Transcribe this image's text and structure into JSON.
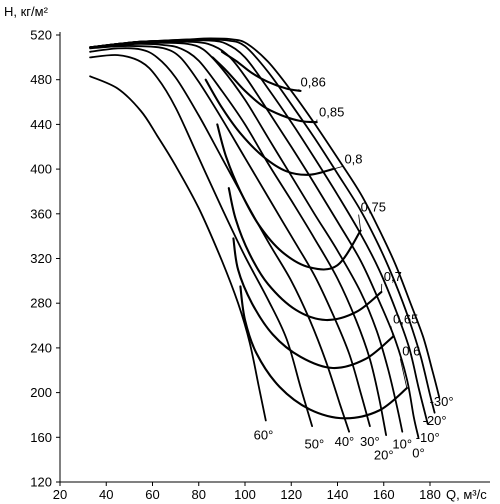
{
  "chart_data": {
    "type": "line",
    "xlabel": "Q, м³/с",
    "ylabel": "H, кг/м²",
    "xlim": [
      20,
      185
    ],
    "ylim": [
      120,
      520
    ],
    "x_ticks": [
      20,
      40,
      60,
      80,
      100,
      120,
      140,
      160,
      180
    ],
    "y_ticks": [
      120,
      160,
      200,
      240,
      280,
      320,
      360,
      400,
      440,
      480,
      520
    ],
    "grid": false,
    "blade_angle_curves": [
      {
        "name": "60°",
        "label_at": [
          108,
          158
        ],
        "points": [
          [
            33,
            483
          ],
          [
            45,
            472
          ],
          [
            55,
            452
          ],
          [
            62,
            430
          ],
          [
            70,
            403
          ],
          [
            80,
            365
          ],
          [
            90,
            318
          ],
          [
            97,
            280
          ],
          [
            102,
            245
          ],
          [
            106,
            205
          ],
          [
            109,
            175
          ]
        ]
      },
      {
        "name": "50°",
        "label_at": [
          130,
          150
        ],
        "points": [
          [
            33,
            500
          ],
          [
            45,
            502
          ],
          [
            55,
            496
          ],
          [
            62,
            482
          ],
          [
            70,
            455
          ],
          [
            80,
            410
          ],
          [
            90,
            365
          ],
          [
            100,
            322
          ],
          [
            110,
            283
          ],
          [
            118,
            248
          ],
          [
            124,
            205
          ],
          [
            129,
            170
          ]
        ]
      },
      {
        "name": "40°",
        "label_at": [
          143,
          152
        ],
        "points": [
          [
            33,
            505
          ],
          [
            45,
            508
          ],
          [
            55,
            507
          ],
          [
            62,
            500
          ],
          [
            70,
            482
          ],
          [
            80,
            448
          ],
          [
            90,
            410
          ],
          [
            100,
            372
          ],
          [
            110,
            335
          ],
          [
            120,
            300
          ],
          [
            128,
            265
          ],
          [
            135,
            228
          ],
          [
            141,
            190
          ],
          [
            145,
            165
          ]
        ]
      },
      {
        "name": "30°",
        "label_at": [
          154,
          152
        ],
        "points": [
          [
            33,
            508
          ],
          [
            45,
            510
          ],
          [
            55,
            510
          ],
          [
            65,
            508
          ],
          [
            72,
            500
          ],
          [
            80,
            478
          ],
          [
            90,
            445
          ],
          [
            100,
            410
          ],
          [
            110,
            375
          ],
          [
            120,
            340
          ],
          [
            130,
            305
          ],
          [
            138,
            270
          ],
          [
            145,
            235
          ],
          [
            150,
            200
          ],
          [
            154,
            170
          ]
        ]
      },
      {
        "name": "20°",
        "label_at": [
          160,
          140
        ],
        "points": [
          [
            33,
            509
          ],
          [
            45,
            511
          ],
          [
            55,
            512
          ],
          [
            65,
            511
          ],
          [
            72,
            508
          ],
          [
            80,
            497
          ],
          [
            90,
            470
          ],
          [
            100,
            440
          ],
          [
            110,
            405
          ],
          [
            120,
            372
          ],
          [
            130,
            338
          ],
          [
            140,
            302
          ],
          [
            148,
            265
          ],
          [
            154,
            230
          ],
          [
            158,
            195
          ],
          [
            161,
            162
          ]
        ]
      },
      {
        "name": "10°",
        "label_at": [
          168,
          150
        ],
        "points": [
          [
            33,
            509
          ],
          [
            45,
            512
          ],
          [
            55,
            513
          ],
          [
            65,
            513
          ],
          [
            75,
            512
          ],
          [
            82,
            507
          ],
          [
            90,
            490
          ],
          [
            100,
            462
          ],
          [
            110,
            428
          ],
          [
            120,
            394
          ],
          [
            130,
            360
          ],
          [
            140,
            327
          ],
          [
            150,
            290
          ],
          [
            157,
            255
          ],
          [
            162,
            220
          ],
          [
            166,
            185
          ],
          [
            168,
            165
          ]
        ]
      },
      {
        "name": "0°",
        "label_at": [
          175,
          142
        ],
        "points": [
          [
            33,
            509
          ],
          [
            45,
            512
          ],
          [
            55,
            514
          ],
          [
            65,
            514
          ],
          [
            75,
            514
          ],
          [
            84,
            512
          ],
          [
            92,
            503
          ],
          [
            100,
            483
          ],
          [
            110,
            452
          ],
          [
            120,
            420
          ],
          [
            130,
            387
          ],
          [
            140,
            353
          ],
          [
            150,
            318
          ],
          [
            158,
            282
          ],
          [
            165,
            247
          ],
          [
            170,
            212
          ],
          [
            173,
            178
          ],
          [
            175,
            160
          ]
        ]
      },
      {
        "name": "-10°",
        "label_at": [
          179,
          156
        ],
        "points": [
          [
            33,
            509
          ],
          [
            45,
            512
          ],
          [
            55,
            514
          ],
          [
            65,
            515
          ],
          [
            75,
            515
          ],
          [
            85,
            515
          ],
          [
            92,
            512
          ],
          [
            100,
            500
          ],
          [
            110,
            472
          ],
          [
            120,
            442
          ],
          [
            130,
            410
          ],
          [
            140,
            377
          ],
          [
            150,
            342
          ],
          [
            158,
            310
          ],
          [
            165,
            275
          ],
          [
            171,
            240
          ],
          [
            175,
            205
          ],
          [
            179,
            172
          ]
        ]
      },
      {
        "name": "-20°",
        "label_at": [
          182,
          171
        ],
        "points": [
          [
            33,
            509
          ],
          [
            45,
            512
          ],
          [
            55,
            514
          ],
          [
            65,
            515
          ],
          [
            75,
            516
          ],
          [
            85,
            516
          ],
          [
            93,
            515
          ],
          [
            100,
            510
          ],
          [
            110,
            487
          ],
          [
            120,
            458
          ],
          [
            130,
            428
          ],
          [
            140,
            396
          ],
          [
            150,
            363
          ],
          [
            158,
            331
          ],
          [
            165,
            298
          ],
          [
            171,
            265
          ],
          [
            176,
            232
          ],
          [
            180,
            198
          ],
          [
            182,
            182
          ]
        ]
      },
      {
        "name": "-30°",
        "label_at": [
          185,
          188
        ],
        "points": [
          [
            33,
            509
          ],
          [
            45,
            512
          ],
          [
            55,
            514
          ],
          [
            65,
            515
          ],
          [
            75,
            516
          ],
          [
            85,
            517
          ],
          [
            95,
            516
          ],
          [
            101,
            512
          ],
          [
            110,
            496
          ],
          [
            120,
            470
          ],
          [
            130,
            441
          ],
          [
            140,
            410
          ],
          [
            150,
            378
          ],
          [
            158,
            346
          ],
          [
            165,
            315
          ],
          [
            171,
            283
          ],
          [
            177,
            250
          ],
          [
            181,
            220
          ],
          [
            184,
            196
          ]
        ]
      }
    ],
    "efficiency_curves": [
      {
        "name": "0,6",
        "label_at": [
          168,
          233
        ],
        "points": [
          [
            98,
            295
          ],
          [
            100,
            265
          ],
          [
            105,
            235
          ],
          [
            115,
            205
          ],
          [
            128,
            185
          ],
          [
            143,
            177
          ],
          [
            158,
            184
          ],
          [
            170,
            204
          ]
        ]
      },
      {
        "name": "0,65",
        "label_at": [
          164,
          262
        ],
        "points": [
          [
            95,
            338
          ],
          [
            97,
            310
          ],
          [
            103,
            280
          ],
          [
            112,
            252
          ],
          [
            124,
            232
          ],
          [
            138,
            222
          ],
          [
            152,
            230
          ],
          [
            164,
            250
          ]
        ]
      },
      {
        "name": "0,7",
        "label_at": [
          160,
          300
        ],
        "points": [
          [
            93,
            383
          ],
          [
            96,
            355
          ],
          [
            102,
            324
          ],
          [
            110,
            297
          ],
          [
            122,
            274
          ],
          [
            135,
            265
          ],
          [
            148,
            272
          ],
          [
            159,
            290
          ]
        ]
      },
      {
        "name": "0,75",
        "label_at": [
          150,
          362
        ],
        "points": [
          [
            88,
            440
          ],
          [
            92,
            410
          ],
          [
            98,
            380
          ],
          [
            106,
            350
          ],
          [
            116,
            326
          ],
          [
            128,
            312
          ],
          [
            140,
            314
          ],
          [
            150,
            345
          ]
        ]
      },
      {
        "name": "0,8",
        "label_at": [
          143,
          405
        ],
        "points": [
          [
            83,
            480
          ],
          [
            90,
            455
          ],
          [
            98,
            432
          ],
          [
            108,
            411
          ],
          [
            118,
            398
          ],
          [
            128,
            395
          ],
          [
            138,
            400
          ]
        ]
      },
      {
        "name": "0,85",
        "label_at": [
          132,
          447
        ],
        "points": [
          [
            86,
            500
          ],
          [
            92,
            488
          ],
          [
            100,
            470
          ],
          [
            108,
            456
          ],
          [
            116,
            448
          ],
          [
            124,
            443
          ],
          [
            131,
            442
          ]
        ]
      },
      {
        "name": "0,86",
        "label_at": [
          124,
          474
        ],
        "points": [
          [
            90,
            505
          ],
          [
            96,
            497
          ],
          [
            103,
            486
          ],
          [
            110,
            478
          ],
          [
            118,
            472
          ],
          [
            124,
            470
          ]
        ]
      }
    ],
    "labels": {
      "x_axis_title": "Q, м³/с",
      "y_axis_title": "H, кг/м²"
    }
  }
}
